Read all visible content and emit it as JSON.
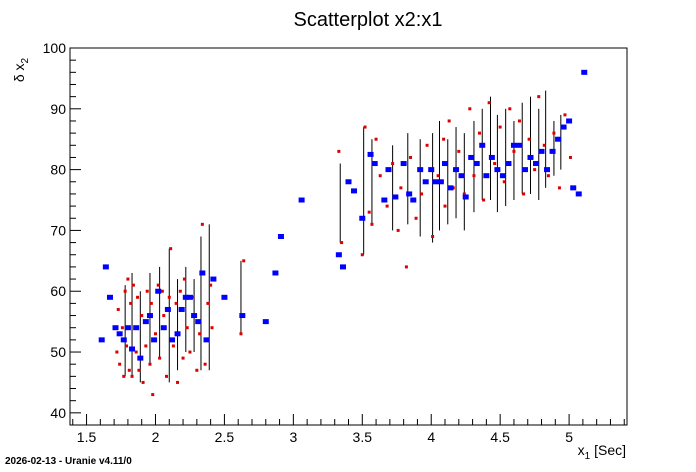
{
  "footer": {
    "stamp": "2026-02-13 - Uranie v4.11/0"
  },
  "chart_data": {
    "type": "scatter",
    "title": "Scatterplot x2:x1",
    "xlabel_main": "x",
    "xlabel_sub": "1",
    "xlabel_unit": " [Sec]",
    "ylabel_prefix": "δ x",
    "ylabel_sub": "2",
    "xlim": [
      1.38,
      5.42
    ],
    "ylim": [
      38,
      100
    ],
    "xticks": [
      1.5,
      2,
      2.5,
      3,
      3.5,
      4,
      4.5,
      5
    ],
    "xtick_labels": [
      "1.5",
      "2",
      "2.5",
      "3",
      "3.5",
      "4",
      "4.5",
      "5"
    ],
    "yticks": [
      40,
      50,
      60,
      70,
      80,
      90,
      100
    ],
    "ytick_labels": [
      "40",
      "50",
      "60",
      "70",
      "80",
      "90",
      "100"
    ],
    "grid": false,
    "colors": {
      "mean": "#0000ff",
      "sample": "#dd0000",
      "bar": "#000000",
      "axis": "#000000"
    },
    "series": [
      {
        "role": "mean",
        "x": [
          1.61,
          1.64,
          1.67,
          1.71,
          1.74,
          1.77,
          1.8,
          1.83,
          1.86,
          1.89,
          1.93,
          1.96,
          1.99,
          2.02,
          2.06,
          2.09,
          2.12,
          2.16,
          2.19,
          2.22,
          2.25,
          2.28,
          2.31,
          2.34,
          2.37,
          2.42,
          2.5,
          2.63,
          2.8,
          2.87,
          2.91,
          3.06,
          3.33,
          3.36,
          3.4,
          3.44,
          3.5,
          3.56,
          3.59,
          3.66,
          3.69,
          3.74,
          3.8,
          3.84,
          3.87,
          3.92,
          3.96,
          4.0,
          4.03,
          4.07,
          4.1,
          4.14,
          4.18,
          4.22,
          4.25,
          4.29,
          4.33,
          4.37,
          4.4,
          4.44,
          4.48,
          4.52,
          4.56,
          4.6,
          4.64,
          4.68,
          4.72,
          4.76,
          4.8,
          4.84,
          4.88,
          4.92,
          4.96,
          5.0,
          5.03,
          5.07,
          5.11
        ],
        "y": [
          52,
          64,
          59,
          54,
          53,
          52,
          54,
          50.5,
          54,
          49,
          55,
          56,
          52,
          60,
          54,
          57,
          52,
          53,
          57,
          59,
          59,
          56,
          55,
          63,
          52,
          62,
          59,
          56,
          55,
          63,
          69,
          75,
          66,
          64,
          78,
          76.5,
          72,
          82.5,
          81,
          75,
          80,
          75.5,
          81,
          76,
          75,
          80,
          78,
          80,
          78,
          78,
          81,
          77,
          80,
          79,
          75.5,
          82,
          81,
          84,
          79,
          82,
          80,
          79,
          81,
          84,
          84,
          80,
          82,
          81,
          83,
          80,
          83,
          85,
          87,
          88,
          77,
          76,
          96
        ]
      },
      {
        "role": "sample",
        "x": [
          1.72,
          1.73,
          1.74,
          1.76,
          1.77,
          1.78,
          1.79,
          1.8,
          1.81,
          1.82,
          1.83,
          1.84,
          1.86,
          1.87,
          1.88,
          1.9,
          1.91,
          1.93,
          1.94,
          1.96,
          1.97,
          1.98,
          2.0,
          2.02,
          2.03,
          2.05,
          2.06,
          2.08,
          2.1,
          2.11,
          2.13,
          2.15,
          2.16,
          2.18,
          2.2,
          2.21,
          2.23,
          2.25,
          2.27,
          2.28,
          2.3,
          2.32,
          2.34,
          2.36,
          2.38,
          2.4,
          2.41,
          2.62,
          2.64,
          3.33,
          3.35,
          3.5,
          3.52,
          3.55,
          3.57,
          3.6,
          3.63,
          3.68,
          3.72,
          3.76,
          3.78,
          3.82,
          3.85,
          3.89,
          3.93,
          3.97,
          4.01,
          4.05,
          4.09,
          4.1,
          4.13,
          4.16,
          4.2,
          4.24,
          4.28,
          4.31,
          4.35,
          4.38,
          4.42,
          4.46,
          4.5,
          4.53,
          4.57,
          4.6,
          4.64,
          4.67,
          4.71,
          4.75,
          4.78,
          4.82,
          4.85,
          4.89,
          4.93,
          4.97,
          5.01
        ],
        "y": [
          50,
          57,
          48,
          54,
          46,
          60,
          51,
          62,
          47,
          58,
          46,
          61,
          50,
          59,
          47,
          56,
          45,
          51,
          60,
          48,
          58,
          43,
          53,
          61,
          49,
          60,
          56,
          46,
          59,
          67,
          51,
          58,
          45,
          60,
          49,
          62,
          54,
          50,
          59,
          56,
          47,
          53,
          71,
          48,
          58,
          61,
          54,
          53,
          65,
          83,
          68,
          66,
          87,
          73,
          71,
          85,
          79,
          74,
          81,
          70,
          77,
          64,
          82,
          72,
          76,
          84,
          69,
          79,
          85,
          74,
          88,
          77,
          83,
          76,
          90,
          79,
          86,
          75,
          91,
          81,
          87,
          78,
          90,
          83,
          88,
          76,
          85,
          80,
          92,
          84,
          79,
          86,
          77,
          89,
          82
        ]
      }
    ],
    "error_bars": {
      "x": [
        1.78,
        1.83,
        1.89,
        1.96,
        2.03,
        2.1,
        2.16,
        2.22,
        2.28,
        2.33,
        2.39,
        2.62,
        3.34,
        3.51,
        3.57,
        3.72,
        3.83,
        3.92,
        4.01,
        4.06,
        4.12,
        4.18,
        4.24,
        4.31,
        4.37,
        4.43,
        4.48,
        4.54,
        4.6,
        4.66,
        4.72,
        4.78,
        4.83,
        4.89,
        4.94
      ],
      "low": [
        46,
        46,
        45,
        48,
        49,
        45,
        47,
        50,
        50,
        47,
        47,
        53,
        68,
        66,
        71,
        70,
        71,
        69,
        68,
        70,
        71,
        72,
        70,
        73,
        75,
        75,
        73,
        74,
        75,
        76,
        76,
        75,
        77,
        79,
        80
      ],
      "high": [
        61,
        63,
        60,
        63,
        64,
        67,
        62,
        64,
        62,
        69,
        71,
        65,
        81,
        87,
        85,
        84,
        86,
        85,
        86,
        88,
        85,
        87,
        86,
        88,
        90,
        92,
        89,
        90,
        88,
        91,
        92,
        90,
        93,
        88,
        89
      ]
    }
  }
}
